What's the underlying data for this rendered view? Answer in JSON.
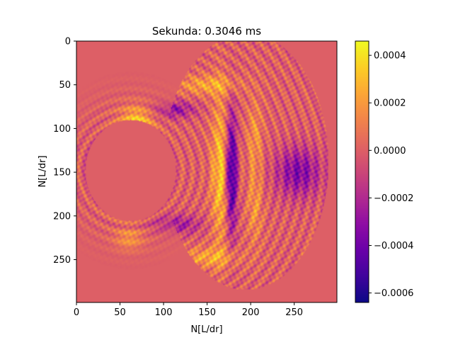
{
  "chart_data": {
    "type": "heatmap",
    "title": "Sekunda: 0.3046 ms",
    "xlabel": "N[L/dr]",
    "ylabel": "N[L/dr]",
    "xlim": [
      0,
      299
    ],
    "ylim": [
      299,
      0
    ],
    "x_ticks": [
      0,
      50,
      100,
      150,
      200,
      250
    ],
    "y_ticks": [
      0,
      50,
      100,
      150,
      200,
      250
    ],
    "colormap": "plasma",
    "background_value": 0.0,
    "colorbar": {
      "vmin": -0.00064,
      "vmax": 0.00046,
      "ticks": [
        0.0004,
        0.0002,
        0.0,
        -0.0002,
        -0.0004,
        -0.0006
      ],
      "tick_labels": [
        "0.0004",
        "0.0002",
        "0.0000",
        "−0.0002",
        "−0.0004",
        "−0.0006"
      ]
    },
    "features": {
      "outer_wavefront": {
        "center": [
          195,
          138
        ],
        "radius_x": 95,
        "radius_y": 147,
        "value": 2e-05
      },
      "inner_hole": {
        "center": [
          62,
          148
        ],
        "radius_x": 52,
        "radius_y": 58,
        "value": 0.0
      },
      "strong_negative_band": {
        "x": 178,
        "y_range": [
          100,
          200
        ],
        "value": -0.00058
      },
      "positive_band_left_of_negative": {
        "x": 165,
        "y_range": [
          95,
          205
        ],
        "value": 0.00032
      },
      "right_negative_region": {
        "center": [
          255,
          150
        ],
        "radius": 25,
        "value": -0.00035
      },
      "upper_left_positive_lobe": {
        "center": [
          70,
          88
        ],
        "value": 0.0003
      },
      "lower_left_positive_lobe": {
        "center": [
          60,
          230
        ],
        "value": 0.00028
      },
      "upper_negative_streak": {
        "center": [
          110,
          78
        ],
        "value": -0.0003
      },
      "lower_negative_streak": {
        "center": [
          115,
          210
        ],
        "value": -0.00025
      },
      "far_left_negative_patch": {
        "center": [
          30,
          140
        ],
        "value": -0.00022
      }
    }
  }
}
